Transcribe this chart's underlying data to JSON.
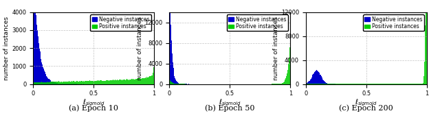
{
  "subplots": [
    {
      "caption": "(a) Epoch 10",
      "ylabel": "number of instances",
      "xlabel": "$\\ell_{sigmoid}$",
      "ylim": [
        0,
        4000
      ],
      "yticks": [
        0,
        1000,
        2000,
        3000,
        4000
      ]
    },
    {
      "caption": "(b) Epoch 50",
      "ylabel": "number of instances",
      "xlabel": "$\\ell_{sigmoid}$",
      "ylim": [
        0,
        14000
      ],
      "yticks": [
        0,
        4000,
        8000,
        12000
      ]
    },
    {
      "caption": "(c) Epoch 200",
      "ylabel": "number of instances",
      "xlabel": "$\\ell_{sigmoid}$",
      "ylim": [
        0,
        12000
      ],
      "yticks": [
        0,
        4000,
        8000,
        12000
      ]
    }
  ],
  "neg_color": "#0000cc",
  "pos_color": "#00cc00",
  "neg_label": "Negative instances",
  "pos_label": "Positive instances",
  "grid_color": "#aaaaaa",
  "grid_linestyle": "--",
  "background_color": "#ffffff",
  "n_bins": 200,
  "xticks": [
    0,
    0.5,
    1
  ],
  "xtick_labels": [
    "0",
    "0.5",
    "1"
  ]
}
